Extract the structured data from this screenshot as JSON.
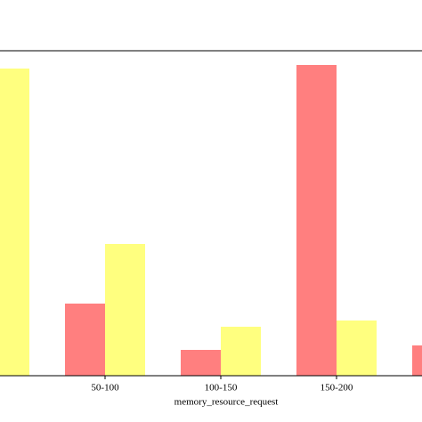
{
  "chart_data": {
    "type": "bar",
    "xlabel": "memory_resource_request",
    "categories": [
      null,
      "50-100",
      "100-150",
      "150-200",
      null
    ],
    "series": [
      {
        "color": "#ff7f7f",
        "values": [
          null,
          81,
          29,
          349,
          34
        ]
      },
      {
        "color": "#ffff7f",
        "values": [
          345,
          148,
          55,
          62,
          null
        ]
      }
    ],
    "ylim": [
      0,
      365
    ]
  }
}
